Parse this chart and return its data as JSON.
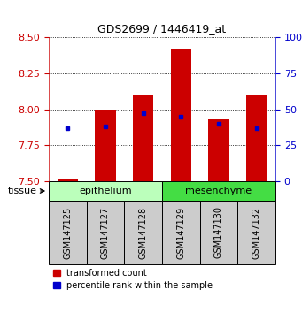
{
  "title": "GDS2699 / 1446419_at",
  "samples": [
    "GSM147125",
    "GSM147127",
    "GSM147128",
    "GSM147129",
    "GSM147130",
    "GSM147132"
  ],
  "bar_tops": [
    7.52,
    8.0,
    8.1,
    8.42,
    7.93,
    8.1
  ],
  "bar_base": 7.5,
  "blue_values": [
    7.87,
    7.88,
    7.97,
    7.95,
    7.9,
    7.87
  ],
  "ylim_left": [
    7.5,
    8.5
  ],
  "ylim_right": [
    0,
    100
  ],
  "yticks_left": [
    7.5,
    7.75,
    8.0,
    8.25,
    8.5
  ],
  "yticks_right": [
    0,
    25,
    50,
    75,
    100
  ],
  "bar_color": "#CC0000",
  "blue_color": "#0000CC",
  "groups": [
    {
      "label": "epithelium",
      "indices": [
        0,
        1,
        2
      ],
      "color": "#BBFFBB"
    },
    {
      "label": "mesenchyme",
      "indices": [
        3,
        4,
        5
      ],
      "color": "#44DD44"
    }
  ],
  "tissue_label": "tissue",
  "legend_items": [
    {
      "label": "transformed count",
      "color": "#CC0000"
    },
    {
      "label": "percentile rank within the sample",
      "color": "#0000CC"
    }
  ],
  "bar_width": 0.55,
  "xlim": [
    -0.5,
    5.5
  ],
  "gray_box_color": "#cccccc",
  "title_fontsize": 9,
  "axis_fontsize": 8,
  "label_fontsize": 7,
  "legend_fontsize": 7
}
